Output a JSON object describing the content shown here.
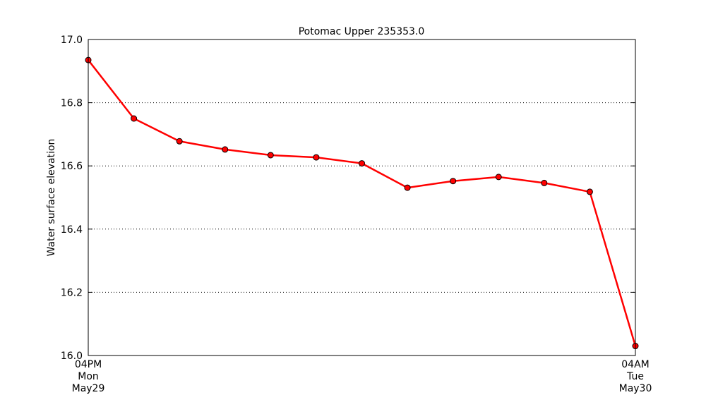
{
  "chart_data": {
    "type": "line",
    "title": "Potomac Upper 235353.0",
    "ylabel": "Water surface elevation",
    "xlabel": "",
    "ylim": [
      16.0,
      17.0
    ],
    "yticks": [
      "16.0",
      "16.2",
      "16.4",
      "16.6",
      "16.8",
      "17.0"
    ],
    "xticks": [
      {
        "lines": [
          "04PM",
          "Mon",
          "May29"
        ]
      },
      {
        "lines": [
          "04AM",
          "Tue",
          "May30"
        ]
      }
    ],
    "grid": "y-dotted",
    "line_color": "#ff0000",
    "marker_color": "#ff0000",
    "series": [
      {
        "x": [
          0,
          1,
          2,
          3,
          4,
          5,
          6,
          7,
          8,
          9,
          10,
          11,
          12
        ],
        "values": [
          16.935,
          16.75,
          16.678,
          16.652,
          16.634,
          16.627,
          16.608,
          16.531,
          16.552,
          16.565,
          16.546,
          16.518,
          16.03
        ]
      }
    ]
  }
}
